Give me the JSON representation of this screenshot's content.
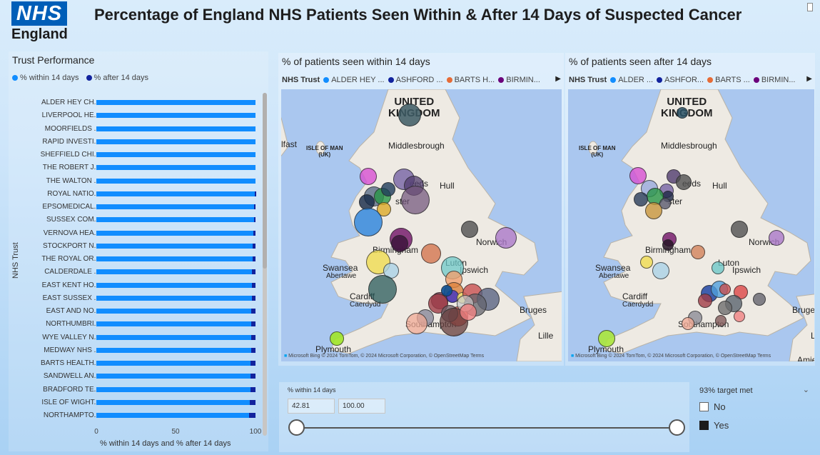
{
  "header": {
    "logo_nhs": "NHS",
    "logo_england": "England",
    "title": "Percentage of England NHS Patients Seen Within & After 14 Days of Suspected Cancer"
  },
  "trust_panel": {
    "title": "Trust Performance",
    "legend": [
      {
        "label": "% within 14 days",
        "color": "#118dff"
      },
      {
        "label": "% after 14 days",
        "color": "#12239e"
      }
    ],
    "y_axis_title": "NHS Trust",
    "x_axis_title": "% within 14 days and % after 14 days",
    "x_ticks": [
      "0",
      "50",
      "100"
    ]
  },
  "chart_data": {
    "type": "bar",
    "orientation": "horizontal",
    "stacked": true,
    "categories": [
      "ALDER HEY CH...",
      "LIVERPOOL HE...",
      "MOORFIELDS ...",
      "RAPID INVESTI...",
      "SHEFFIELD CHI...",
      "THE ROBERT J...",
      "THE WALTON ...",
      "ROYAL NATIO...",
      "EPSOMEDICAL...",
      "SUSSEX COM...",
      "VERNOVA HEA...",
      "STOCKPORT N...",
      "THE ROYAL OR...",
      "CALDERDALE ...",
      "EAST KENT HO...",
      "EAST SUSSEX ...",
      "EAST AND NO...",
      "NORTHUMBRI...",
      "WYE VALLEY N...",
      "MEDWAY NHS ...",
      "BARTS HEALTH...",
      "SANDWELL AN...",
      "BRADFORD TE...",
      "ISLE OF WIGHT...",
      "NORTHAMPTO..."
    ],
    "series": [
      {
        "name": "% within 14 days",
        "color": "#118dff",
        "values": [
          100,
          100,
          100,
          100,
          100,
          100,
          100,
          99.5,
          99.1,
          98.9,
          98.7,
          98.4,
          98.2,
          97.9,
          97.8,
          97.6,
          97.5,
          97.4,
          97.3,
          97.2,
          97.0,
          96.9,
          96.7,
          96.5,
          96.0
        ]
      },
      {
        "name": "% after 14 days",
        "color": "#12239e",
        "values": [
          0,
          0,
          0,
          0,
          0,
          0,
          0,
          0.5,
          0.9,
          1.1,
          1.3,
          1.6,
          1.8,
          2.1,
          2.2,
          2.4,
          2.5,
          2.6,
          2.7,
          2.8,
          3.0,
          3.1,
          3.3,
          3.5,
          4.0
        ]
      }
    ],
    "xlabel": "% within 14 days and % after 14 days",
    "ylabel": "NHS Trust",
    "xlim": [
      0,
      100
    ],
    "legend": "top-left"
  },
  "map_within": {
    "title": "% of patients seen within 14 days",
    "legend_label": "NHS Trust",
    "legend_items": [
      {
        "label": "ALDER HEY ...",
        "color": "#118dff"
      },
      {
        "label": "ASHFORD ...",
        "color": "#12239e"
      },
      {
        "label": "BARTS H...",
        "color": "#e66c37"
      },
      {
        "label": "BIRMIN...",
        "color": "#6b007b"
      }
    ]
  },
  "map_after": {
    "title": "% of patients seen after 14 days",
    "legend_label": "NHS Trust",
    "legend_items": [
      {
        "label": "ALDER ...",
        "color": "#118dff"
      },
      {
        "label": "ASHFOR...",
        "color": "#12239e"
      },
      {
        "label": "BARTS ...",
        "color": "#e66c37"
      },
      {
        "label": "BIRMIN...",
        "color": "#6b007b"
      }
    ]
  },
  "map_labels": {
    "uk": "UNITED KINGDOM",
    "isle_of_man": "ISLE OF MAN (UK)",
    "middlesbrough": "Middlesbrough",
    "hull": "Hull",
    "norwich": "Norwich",
    "birmingham": "Birmingham",
    "swansea": "Swansea",
    "abertawe": "Abertawe",
    "luton": "Luton",
    "ipswich": "Ipswich",
    "cardiff": "Cardiff",
    "caerdydd": "Caerdydd",
    "bruges": "Bruges",
    "lille": "Lille",
    "southampton": "Southampton",
    "plymouth": "Plymouth",
    "belfast_partial": "lfast",
    "amiens_partial": "Amie",
    "leeds_partial": "eeds",
    "manchester_partial": "ster",
    "credit": "© 2024 TomTom, © 2024 Microsoft Corporation, © OpenStreetMap  Terms",
    "bing": "Microsoft Bing"
  },
  "range_slicer": {
    "title": "% within 14 days",
    "min_value": "42.81",
    "max_value": "100.00"
  },
  "target_slicer": {
    "title": "93% target met",
    "options": [
      {
        "label": "No",
        "checked": false
      },
      {
        "label": "Yes",
        "checked": true
      }
    ]
  }
}
